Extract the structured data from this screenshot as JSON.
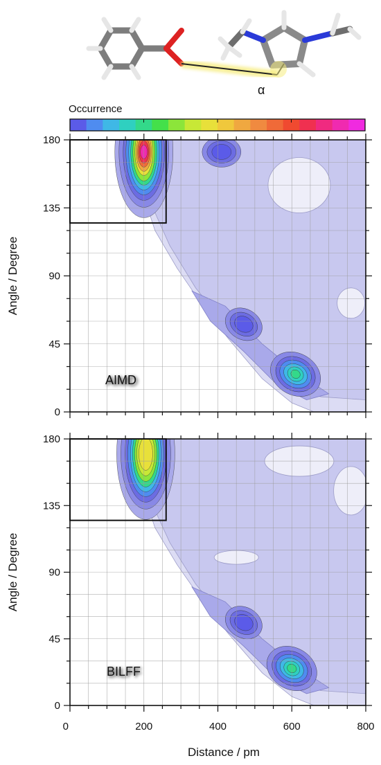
{
  "figure": {
    "angle_symbol": "α",
    "colorbar_label": "Occurrence",
    "colorbar_colors": [
      "#5b5be8",
      "#4f8cf0",
      "#3fb8e6",
      "#2fd0c0",
      "#33d98a",
      "#44e04a",
      "#8ce53a",
      "#c8e836",
      "#e8e03a",
      "#f0c83c",
      "#f0a840",
      "#f08a40",
      "#f06a38",
      "#f04a30",
      "#f03050",
      "#f02a80",
      "#f02ab0",
      "#f02ae0"
    ],
    "molecule": {
      "description": ""
    }
  },
  "chart_data": [
    {
      "type": "heatmap",
      "panel_label": "AIMD",
      "xlabel": "Distance / pm",
      "ylabel": "Angle / Degree",
      "xlim": [
        0,
        800
      ],
      "ylim": [
        0,
        180
      ],
      "x_ticks": [
        "0",
        "200",
        "400",
        "600",
        "800"
      ],
      "y_ticks": [
        "0",
        "45",
        "90",
        "135",
        "180"
      ],
      "grid": true,
      "highlight_box": {
        "x_range": [
          0,
          260
        ],
        "y_range": [
          125,
          180
        ]
      },
      "peaks": [
        {
          "x": 200,
          "y": 172,
          "level": "max"
        },
        {
          "x": 610,
          "y": 25,
          "level": "medium"
        },
        {
          "x": 470,
          "y": 58,
          "level": "low"
        },
        {
          "x": 410,
          "y": 172,
          "level": "low"
        }
      ]
    },
    {
      "type": "heatmap",
      "panel_label": "BILFF",
      "xlabel": "Distance / pm",
      "ylabel": "Angle / Degree",
      "xlim": [
        0,
        800
      ],
      "ylim": [
        0,
        180
      ],
      "x_ticks": [
        "0",
        "200",
        "400",
        "600",
        "800"
      ],
      "y_ticks": [
        "0",
        "45",
        "90",
        "135",
        "180"
      ],
      "grid": true,
      "highlight_box": {
        "x_range": [
          0,
          260
        ],
        "y_range": [
          125,
          180
        ]
      },
      "peaks": [
        {
          "x": 205,
          "y": 170,
          "level": "high"
        },
        {
          "x": 600,
          "y": 25,
          "level": "medium"
        },
        {
          "x": 470,
          "y": 56,
          "level": "low"
        }
      ]
    }
  ]
}
